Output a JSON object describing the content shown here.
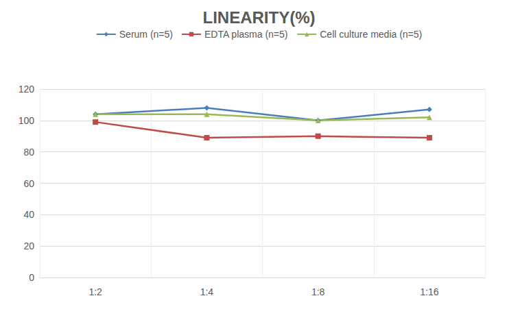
{
  "chart_data": {
    "type": "line",
    "title": "LINEARITY(%)",
    "categories": [
      "1:2",
      "1:4",
      "1:8",
      "1:16"
    ],
    "series": [
      {
        "name": "Serum (n=5)",
        "color": "#4a7ebb",
        "marker": "diamond",
        "values": [
          104,
          108,
          100,
          107
        ]
      },
      {
        "name": "EDTA plasma (n=5)",
        "color": "#be4b48",
        "marker": "square",
        "values": [
          99,
          89,
          90,
          89
        ]
      },
      {
        "name": "Cell culture media (n=5)",
        "color": "#98b954",
        "marker": "triangle",
        "values": [
          104,
          104,
          100,
          102
        ]
      }
    ],
    "ylim": [
      0,
      120
    ],
    "yticks": [
      0,
      20,
      40,
      60,
      80,
      100,
      120
    ],
    "grid": true,
    "legend": "top"
  }
}
